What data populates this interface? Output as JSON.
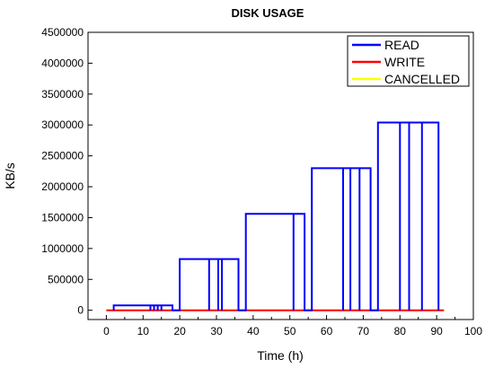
{
  "chart_data": {
    "type": "line",
    "title": "DISK USAGE",
    "xlabel": "Time (h)",
    "ylabel": "KB/s",
    "xlim": [
      -5,
      100
    ],
    "ylim": [
      -150000,
      4500000
    ],
    "xticks": [
      0,
      10,
      20,
      30,
      40,
      50,
      60,
      70,
      80,
      90,
      100
    ],
    "yticks": [
      0,
      500000,
      1000000,
      1500000,
      2000000,
      2500000,
      3000000,
      3500000,
      4000000,
      4500000
    ],
    "legend_position": "top-right",
    "grid": false,
    "series": [
      {
        "name": "READ",
        "color": "#0000ff",
        "x": [
          2,
          2,
          12,
          12,
          12,
          12,
          13,
          13,
          13,
          13,
          14,
          14,
          14,
          14,
          15,
          15,
          15,
          15,
          18,
          18,
          20,
          20,
          28,
          28,
          28,
          28,
          30.5,
          30.5,
          30.5,
          30.5,
          31.5,
          31.5,
          31.5,
          31.5,
          36,
          36,
          38,
          38,
          51,
          51,
          51,
          51,
          54,
          54,
          56,
          56,
          64.5,
          64.5,
          64.5,
          64.5,
          66.5,
          66.5,
          66.5,
          66.5,
          69,
          69,
          69,
          69,
          72,
          72,
          74,
          74,
          80,
          80,
          80,
          80,
          82.5,
          82.5,
          82.5,
          82.5,
          86,
          86,
          86,
          86,
          90.5,
          90.5
        ],
        "y": [
          0,
          80000,
          80000,
          0,
          0,
          80000,
          80000,
          0,
          0,
          80000,
          80000,
          0,
          0,
          80000,
          80000,
          0,
          0,
          80000,
          80000,
          0,
          0,
          830000,
          830000,
          0,
          0,
          830000,
          830000,
          0,
          0,
          830000,
          830000,
          0,
          0,
          830000,
          830000,
          0,
          0,
          1560000,
          1560000,
          0,
          0,
          1560000,
          1560000,
          0,
          0,
          2300000,
          2300000,
          0,
          0,
          2300000,
          2300000,
          0,
          0,
          2300000,
          2300000,
          0,
          0,
          2300000,
          2300000,
          0,
          0,
          3040000,
          3040000,
          0,
          0,
          3040000,
          3040000,
          0,
          0,
          3040000,
          3040000,
          0,
          0,
          3040000,
          3040000,
          0
        ]
      },
      {
        "name": "WRITE",
        "color": "#ff0000",
        "x": [
          0,
          92
        ],
        "y": [
          0,
          0
        ]
      },
      {
        "name": "CANCELLED",
        "color": "#ffff00",
        "x": [
          0,
          92
        ],
        "y": [
          0,
          0
        ]
      }
    ]
  }
}
